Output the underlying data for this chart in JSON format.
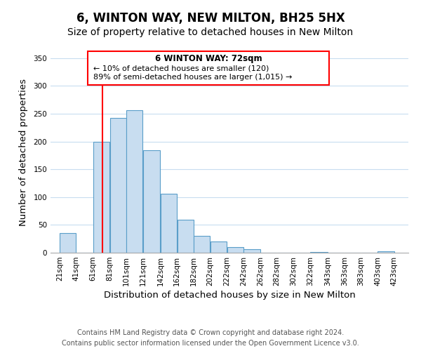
{
  "title": "6, WINTON WAY, NEW MILTON, BH25 5HX",
  "subtitle": "Size of property relative to detached houses in New Milton",
  "xlabel": "Distribution of detached houses by size in New Milton",
  "ylabel": "Number of detached properties",
  "bar_left_edges": [
    21,
    41,
    61,
    81,
    101,
    121,
    142,
    162,
    182,
    202,
    222,
    242,
    262,
    282,
    302,
    322,
    343,
    363,
    383,
    403
  ],
  "bar_heights": [
    35,
    0,
    200,
    243,
    257,
    184,
    106,
    60,
    30,
    20,
    10,
    6,
    0,
    0,
    0,
    1,
    0,
    0,
    0,
    2
  ],
  "bar_widths": [
    20,
    20,
    20,
    20,
    20,
    21,
    20,
    20,
    20,
    20,
    20,
    20,
    20,
    20,
    20,
    21,
    20,
    20,
    20,
    20
  ],
  "bar_color": "#c8ddf0",
  "bar_edgecolor": "#5a9ec9",
  "red_line_x": 72,
  "ylim": [
    0,
    360
  ],
  "yticks": [
    0,
    50,
    100,
    150,
    200,
    250,
    300,
    350
  ],
  "xtick_labels": [
    "21sqm",
    "41sqm",
    "61sqm",
    "81sqm",
    "101sqm",
    "121sqm",
    "142sqm",
    "162sqm",
    "182sqm",
    "202sqm",
    "222sqm",
    "242sqm",
    "262sqm",
    "282sqm",
    "302sqm",
    "322sqm",
    "343sqm",
    "363sqm",
    "383sqm",
    "403sqm",
    "423sqm"
  ],
  "xtick_positions": [
    21,
    41,
    61,
    81,
    101,
    121,
    142,
    162,
    182,
    202,
    222,
    242,
    262,
    282,
    302,
    322,
    343,
    363,
    383,
    403,
    423
  ],
  "annotation_title": "6 WINTON WAY: 72sqm",
  "annotation_line1": "← 10% of detached houses are smaller (120)",
  "annotation_line2": "89% of semi-detached houses are larger (1,015) →",
  "footer1": "Contains HM Land Registry data © Crown copyright and database right 2024.",
  "footer2": "Contains public sector information licensed under the Open Government Licence v3.0.",
  "background_color": "#ffffff",
  "grid_color": "#c8ddf0",
  "title_fontsize": 12,
  "subtitle_fontsize": 10,
  "axis_label_fontsize": 9.5,
  "tick_fontsize": 7.5,
  "footer_fontsize": 7
}
